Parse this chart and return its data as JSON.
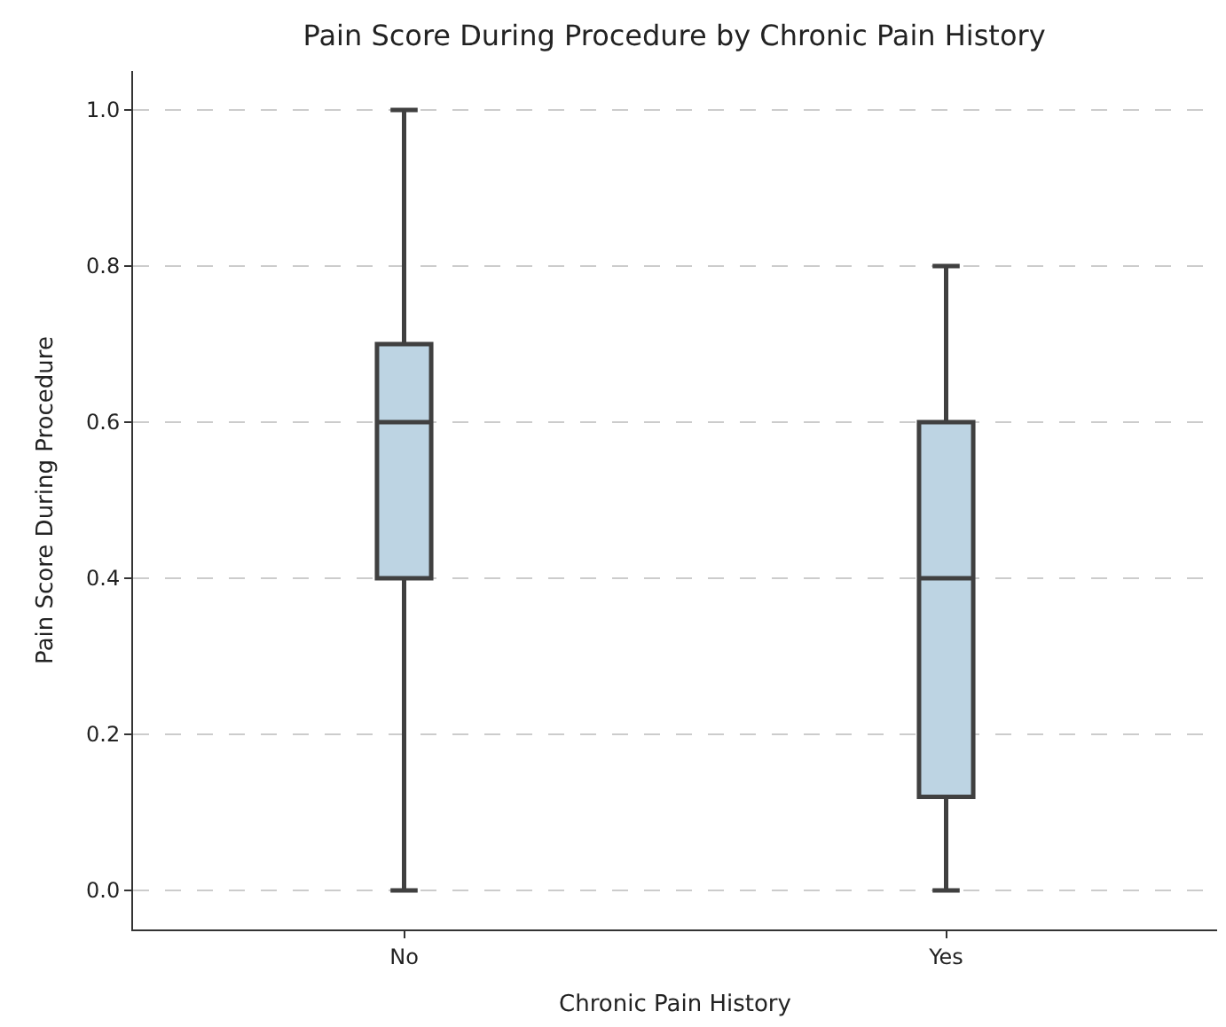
{
  "chart_data": {
    "type": "box",
    "title": "Pain Score During Procedure by Chronic Pain History",
    "xlabel": "Chronic Pain History",
    "ylabel": "Pain Score During Procedure",
    "categories": [
      "No",
      "Yes"
    ],
    "boxes": [
      {
        "low": 0.0,
        "q1": 0.4,
        "median": 0.6,
        "q3": 0.7,
        "high": 1.0
      },
      {
        "low": 0.0,
        "q1": 0.12,
        "median": 0.4,
        "q3": 0.6,
        "high": 0.8
      }
    ],
    "color": "#bdd4e3",
    "ylim": [
      -0.05,
      1.05
    ],
    "yticks": [
      {
        "value": 0,
        "label": "0.0"
      },
      {
        "value": 0.2,
        "label": "0.2"
      },
      {
        "value": 0.4,
        "label": "0.4"
      },
      {
        "value": 0.6,
        "label": "0.6"
      },
      {
        "value": 0.8,
        "label": "0.8"
      },
      {
        "value": 1,
        "label": "1.0"
      }
    ],
    "grid": "y",
    "legend": false
  }
}
